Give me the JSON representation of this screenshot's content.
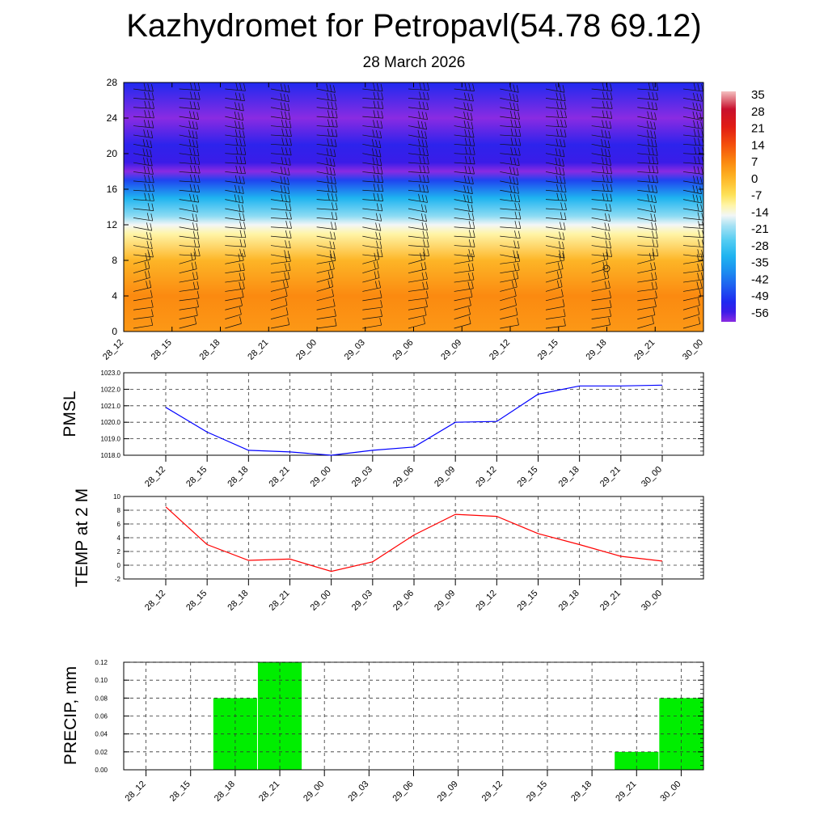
{
  "header": {
    "title": "Kazhydromet for Petropavl(54.78 69.12)",
    "date": "28 March 2026"
  },
  "chart_data": [
    {
      "type": "heatmap",
      "name": "cross-section",
      "x_labels": [
        "28_12",
        "28_15",
        "28_18",
        "28_21",
        "29_00",
        "29_03",
        "29_06",
        "29_09",
        "29_12",
        "29_15",
        "29_18",
        "29_21",
        "30_00"
      ],
      "y_ticks": [
        "0",
        "4",
        "8",
        "12",
        "16",
        "20",
        "24",
        "28"
      ],
      "ylim": [
        0,
        28
      ],
      "colorbar_labels": [
        "35",
        "28",
        "21",
        "14",
        "7",
        "0",
        "-7",
        "-14",
        "-21",
        "-28",
        "-35",
        "-42",
        "-49",
        "-56"
      ],
      "field_profile": [
        {
          "level": 0,
          "value": 5
        },
        {
          "level": 4,
          "value": 7
        },
        {
          "level": 8,
          "value": 1
        },
        {
          "level": 11,
          "value": -10
        },
        {
          "level": 12,
          "value": -14
        },
        {
          "level": 13,
          "value": -20
        },
        {
          "level": 15,
          "value": -30
        },
        {
          "level": 17,
          "value": -45
        },
        {
          "level": 18,
          "value": -56
        },
        {
          "level": 19,
          "value": -52
        },
        {
          "level": 21,
          "value": -50
        },
        {
          "level": 24,
          "value": -56
        },
        {
          "level": 28,
          "value": -48
        }
      ]
    },
    {
      "type": "line",
      "name": "pmsl",
      "ylabel": "PMSL",
      "x": [
        "28_12",
        "28_15",
        "28_18",
        "28_21",
        "29_00",
        "29_03",
        "29_06",
        "29_09",
        "29_12",
        "29_15",
        "29_18",
        "29_21",
        "30_00"
      ],
      "values": [
        1020.9,
        1019.4,
        1018.3,
        1018.2,
        1018.0,
        1018.3,
        1018.5,
        1020.0,
        1020.05,
        1021.7,
        1022.2,
        1022.2,
        1022.25
      ],
      "ylim": [
        1018.0,
        1023.0
      ],
      "y_ticks": [
        "1018.0",
        "1019.0",
        "1020.0",
        "1021.0",
        "1022.0",
        "1023.0"
      ],
      "color": "#0000ff"
    },
    {
      "type": "line",
      "name": "temp",
      "ylabel": "TEMP at 2 M",
      "x": [
        "28_12",
        "28_15",
        "28_18",
        "28_21",
        "29_00",
        "29_03",
        "29_06",
        "29_09",
        "29_12",
        "29_15",
        "29_18",
        "29_21",
        "30_00"
      ],
      "values": [
        8.5,
        3.0,
        0.7,
        0.9,
        -0.9,
        0.5,
        4.4,
        7.4,
        7.1,
        4.6,
        3.0,
        1.3,
        0.6
      ],
      "ylim": [
        -2,
        10
      ],
      "y_ticks": [
        "-2",
        "0",
        "2",
        "4",
        "6",
        "8",
        "10"
      ],
      "color": "#ff0000"
    },
    {
      "type": "bar",
      "name": "precip",
      "ylabel": "PRECIP, mm",
      "categories": [
        "28_12",
        "28_15",
        "28_18",
        "28_21",
        "29_00",
        "29_03",
        "29_06",
        "29_09",
        "29_12",
        "29_15",
        "29_18",
        "29_21",
        "30_00"
      ],
      "values": [
        0,
        0,
        0.08,
        0.12,
        0,
        0,
        0,
        0,
        0,
        0,
        0,
        0.02,
        0.08
      ],
      "ylim": [
        0,
        0.12
      ],
      "y_ticks": [
        "0.00",
        "0.02",
        "0.04",
        "0.06",
        "0.08",
        "0.10",
        "0.12"
      ],
      "color": "#00ee00"
    }
  ]
}
